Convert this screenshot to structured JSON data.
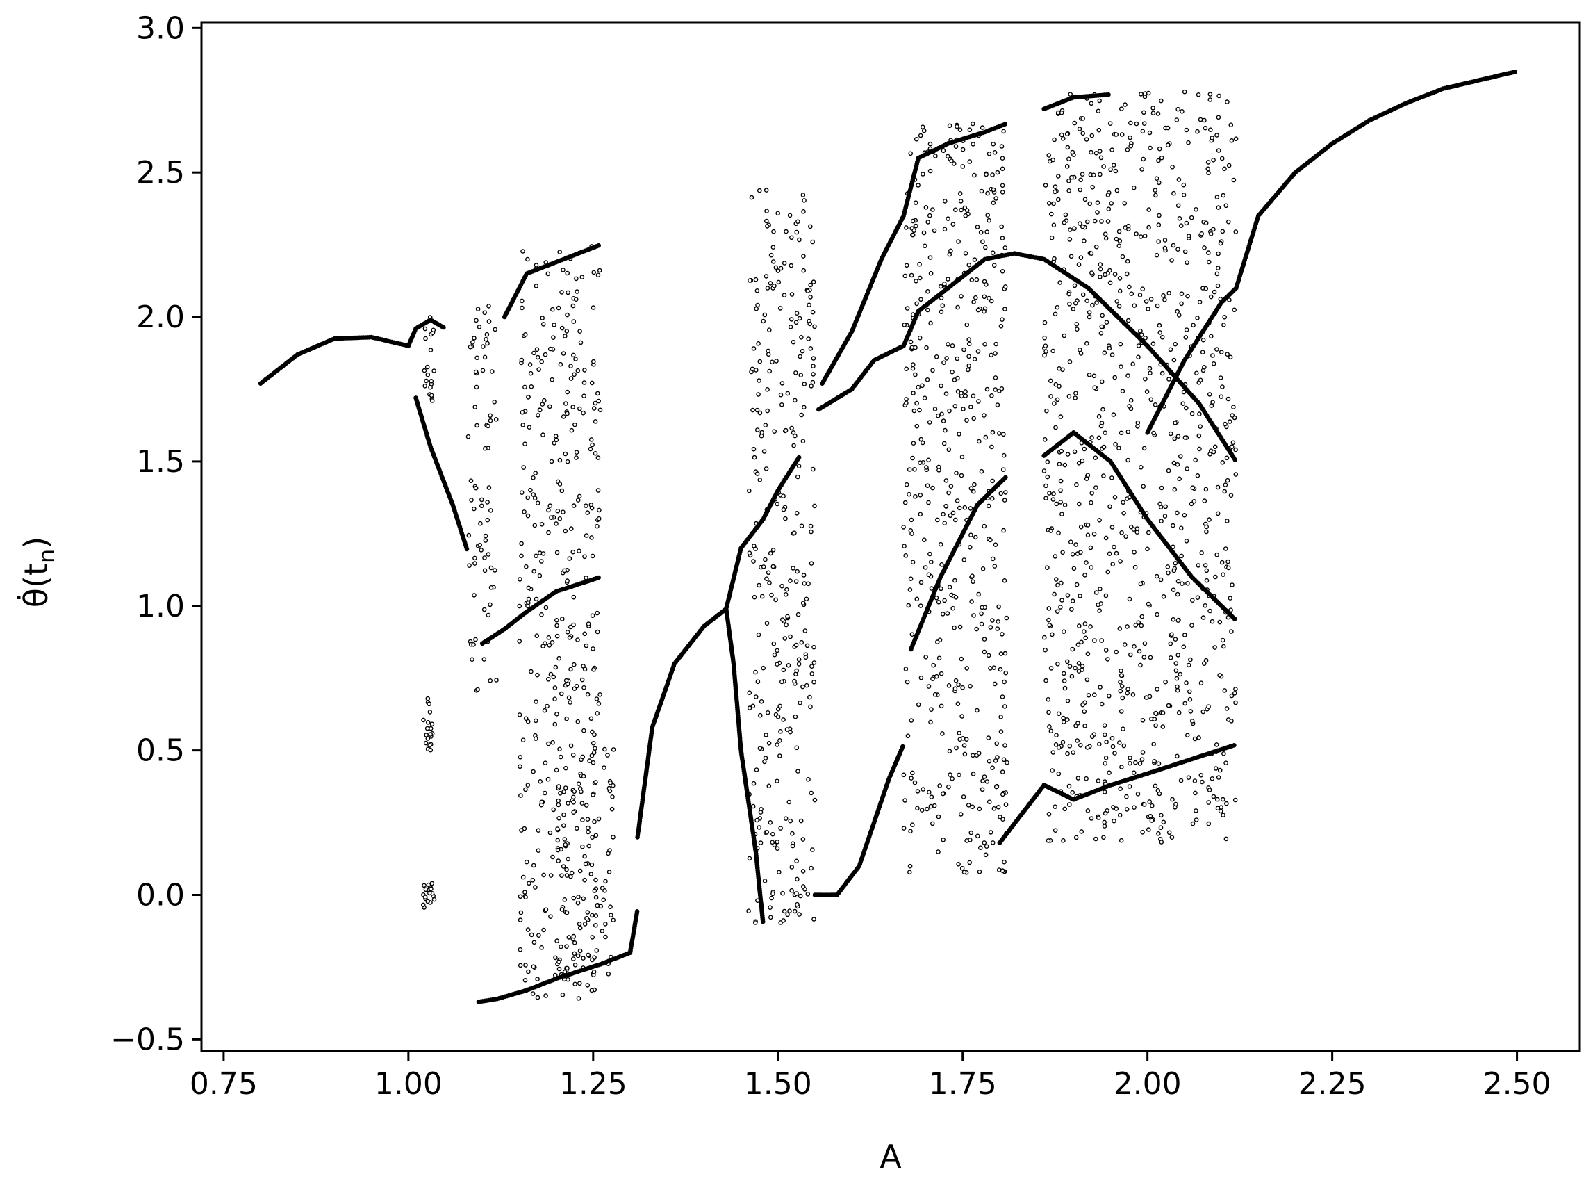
{
  "chart_data": {
    "type": "scatter",
    "title": "",
    "xlabel": "A",
    "ylabel": "θ̇(t_n)",
    "ylabel_parts": {
      "base": "θ̇(t",
      "sub": "n",
      "close": ")"
    },
    "xlim": [
      0.72,
      2.585
    ],
    "ylim": [
      -0.54,
      3.02
    ],
    "x_ticks": [
      0.75,
      1.0,
      1.25,
      1.5,
      1.75,
      2.0,
      2.25,
      2.5
    ],
    "x_tick_labels": [
      "0.75",
      "1.00",
      "1.25",
      "1.50",
      "1.75",
      "2.00",
      "2.25",
      "2.50"
    ],
    "y_ticks": [
      -0.5,
      0.0,
      0.5,
      1.0,
      1.5,
      2.0,
      2.5,
      3.0
    ],
    "y_tick_labels": [
      "−0.5",
      "0.0",
      "0.5",
      "1.0",
      "1.5",
      "2.0",
      "2.5",
      "3.0"
    ],
    "grid": false,
    "legend": "none",
    "marker_color": "#000000",
    "series": [
      {
        "kind": "curves",
        "curves": [
          [
            [
              0.8,
              1.77
            ],
            [
              0.85,
              1.87
            ],
            [
              0.9,
              1.925
            ],
            [
              0.95,
              1.93
            ],
            [
              1.0,
              1.9
            ],
            [
              1.01,
              1.96
            ],
            [
              1.03,
              1.99
            ],
            [
              1.05,
              1.96
            ]
          ],
          [
            [
              1.01,
              1.72
            ],
            [
              1.03,
              1.55
            ],
            [
              1.06,
              1.35
            ],
            [
              1.08,
              1.19
            ]
          ],
          [
            [
              1.1,
              0.87
            ],
            [
              1.13,
              0.92
            ],
            [
              1.16,
              0.98
            ],
            [
              1.2,
              1.05
            ],
            [
              1.26,
              1.1
            ]
          ],
          [
            [
              1.095,
              -0.37
            ],
            [
              1.12,
              -0.36
            ],
            [
              1.16,
              -0.33
            ],
            [
              1.2,
              -0.29
            ],
            [
              1.26,
              -0.24
            ],
            [
              1.3,
              -0.2
            ],
            [
              1.31,
              -0.05
            ]
          ],
          [
            [
              1.13,
              2.0
            ],
            [
              1.16,
              2.15
            ],
            [
              1.26,
              2.25
            ]
          ],
          [
            [
              1.31,
              0.2
            ],
            [
              1.33,
              0.58
            ],
            [
              1.36,
              0.8
            ],
            [
              1.4,
              0.93
            ],
            [
              1.43,
              0.99
            ],
            [
              1.45,
              1.2
            ],
            [
              1.48,
              1.3
            ],
            [
              1.5,
              1.4
            ],
            [
              1.53,
              1.52
            ]
          ],
          [
            [
              1.43,
              0.99
            ],
            [
              1.44,
              0.8
            ],
            [
              1.45,
              0.5
            ],
            [
              1.47,
              0.15
            ],
            [
              1.48,
              -0.1
            ]
          ],
          [
            [
              1.55,
              0.0
            ],
            [
              1.58,
              0.0
            ],
            [
              1.61,
              0.1
            ],
            [
              1.65,
              0.4
            ],
            [
              1.67,
              0.52
            ]
          ],
          [
            [
              1.555,
              1.68
            ],
            [
              1.6,
              1.75
            ],
            [
              1.63,
              1.85
            ],
            [
              1.67,
              1.9
            ],
            [
              1.69,
              2.02
            ],
            [
              1.73,
              2.1
            ],
            [
              1.78,
              2.2
            ],
            [
              1.82,
              2.22
            ],
            [
              1.86,
              2.2
            ],
            [
              1.92,
              2.1
            ],
            [
              2.0,
              1.9
            ],
            [
              2.07,
              1.7
            ],
            [
              2.12,
              1.5
            ]
          ],
          [
            [
              1.56,
              1.77
            ],
            [
              1.6,
              1.95
            ],
            [
              1.64,
              2.2
            ],
            [
              1.67,
              2.35
            ],
            [
              1.69,
              2.55
            ],
            [
              1.73,
              2.6
            ],
            [
              1.78,
              2.64
            ],
            [
              1.81,
              2.67
            ]
          ],
          [
            [
              1.68,
              0.85
            ],
            [
              1.72,
              1.1
            ],
            [
              1.77,
              1.35
            ],
            [
              1.81,
              1.45
            ]
          ],
          [
            [
              1.86,
              1.52
            ],
            [
              1.9,
              1.6
            ],
            [
              1.95,
              1.5
            ],
            [
              2.0,
              1.3
            ],
            [
              2.06,
              1.1
            ],
            [
              2.12,
              0.95
            ]
          ],
          [
            [
              1.8,
              0.18
            ],
            [
              1.83,
              0.28
            ],
            [
              1.86,
              0.38
            ],
            [
              1.9,
              0.33
            ],
            [
              1.95,
              0.38
            ],
            [
              2.0,
              0.42
            ],
            [
              2.06,
              0.47
            ],
            [
              2.12,
              0.52
            ]
          ],
          [
            [
              1.86,
              2.72
            ],
            [
              1.9,
              2.76
            ],
            [
              1.95,
              2.77
            ]
          ],
          [
            [
              2.0,
              1.6
            ],
            [
              2.05,
              1.85
            ],
            [
              2.1,
              2.05
            ],
            [
              2.12,
              2.1
            ],
            [
              2.15,
              2.35
            ],
            [
              2.2,
              2.5
            ],
            [
              2.25,
              2.6
            ],
            [
              2.3,
              2.68
            ],
            [
              2.35,
              2.74
            ],
            [
              2.4,
              2.79
            ],
            [
              2.45,
              2.82
            ],
            [
              2.5,
              2.85
            ]
          ]
        ]
      },
      {
        "kind": "scatter-bands",
        "bands": [
          {
            "x": [
              1.02,
              1.035
            ],
            "y": [
              1.65,
              2.0
            ]
          },
          {
            "x": [
              1.02,
              1.035
            ],
            "y": [
              0.5,
              0.69
            ]
          },
          {
            "x": [
              1.02,
              1.035
            ],
            "y": [
              -0.07,
              0.04
            ]
          },
          {
            "x": [
              1.08,
              1.12
            ],
            "y": [
              0.7,
              2.05
            ]
          },
          {
            "x": [
              1.15,
              1.26
            ],
            "y": [
              -0.36,
              2.25
            ]
          },
          {
            "x": [
              1.2,
              1.28
            ],
            "y": [
              -0.28,
              0.55
            ]
          },
          {
            "x": [
              1.46,
              1.55
            ],
            "y": [
              -0.1,
              2.45
            ]
          },
          {
            "x": [
              1.67,
              1.81
            ],
            "y": [
              0.07,
              2.67
            ]
          },
          {
            "x": [
              1.86,
              2.12
            ],
            "y": [
              0.18,
              2.78
            ]
          }
        ]
      }
    ]
  }
}
